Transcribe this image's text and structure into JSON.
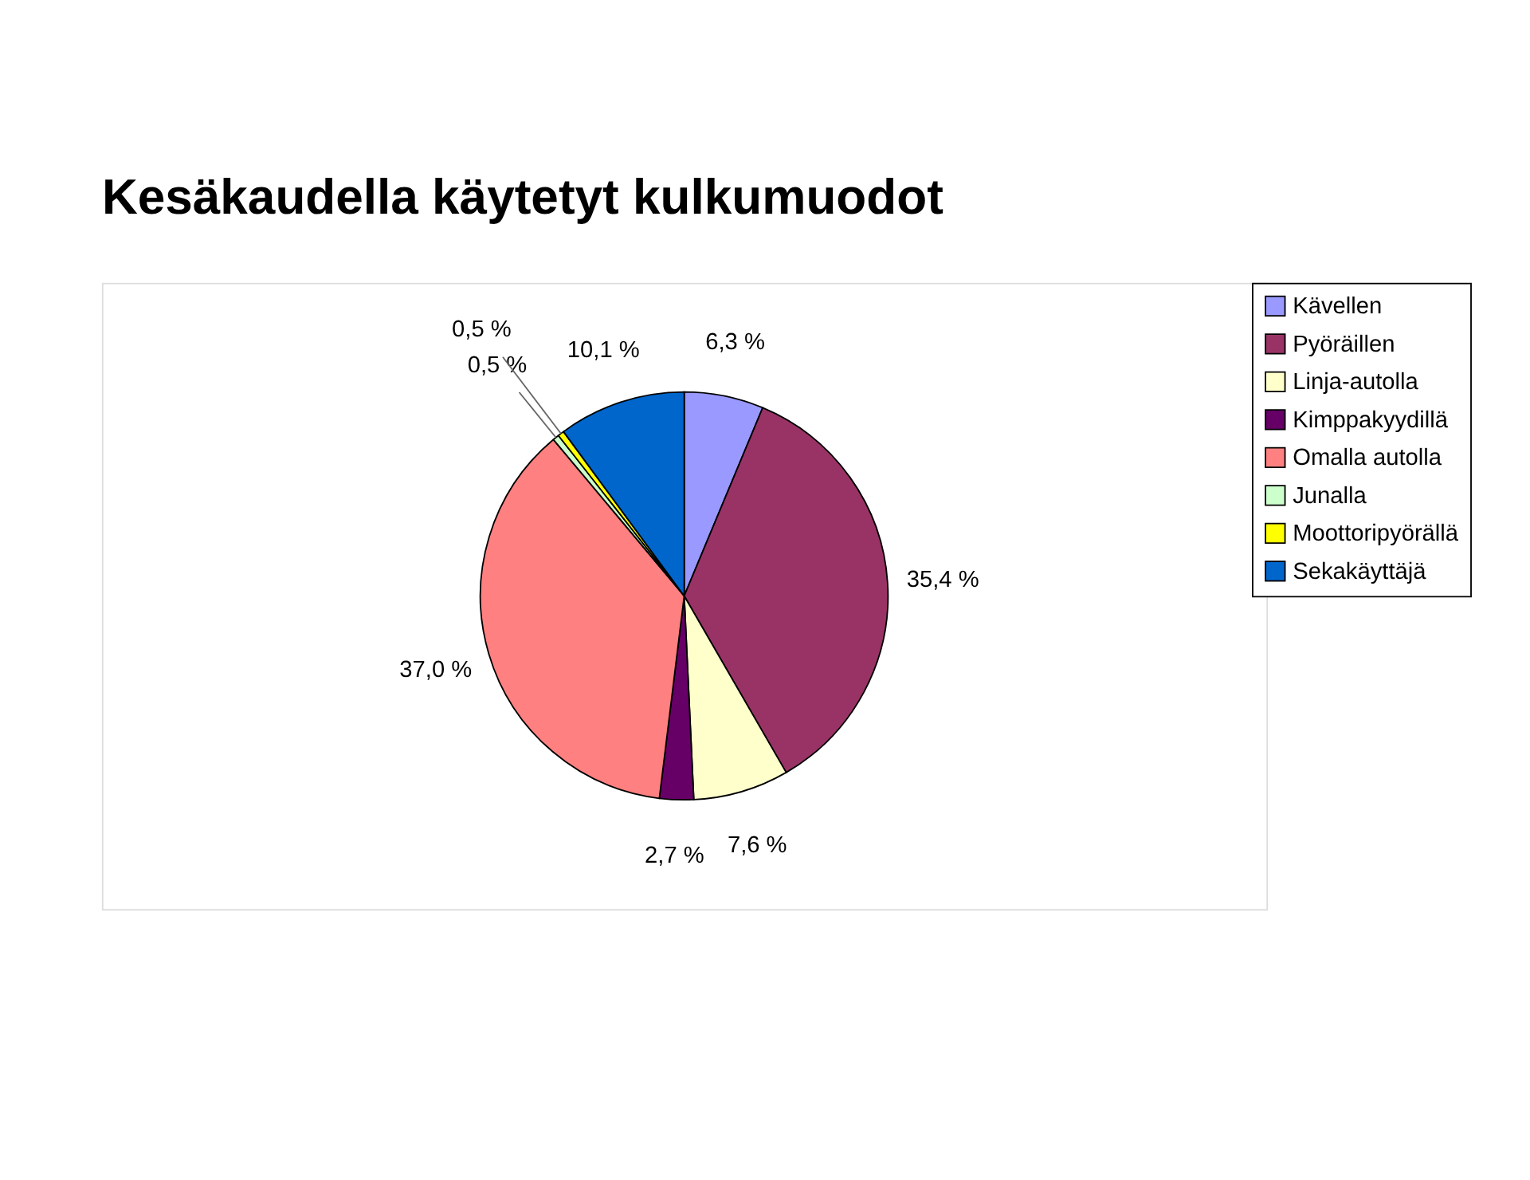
{
  "chart_data": {
    "type": "pie",
    "title": "Kesäkaudella käytetyt kulkumuodot",
    "categories": [
      "Kävellen",
      "Pyöräillen",
      "Linja-autolla",
      "Kimppakyydillä",
      "Omalla autolla",
      "Junalla",
      "Moottoripyörällä",
      "Sekakäyttäjä"
    ],
    "values": [
      6.3,
      35.4,
      7.6,
      2.7,
      37.0,
      0.5,
      0.5,
      10.1
    ],
    "value_labels": [
      "6,3 %",
      "35,4 %",
      "7,6 %",
      "2,7 %",
      "37,0 %",
      "0,5 %",
      "0,5 %",
      "10,1 %"
    ],
    "colors": [
      "#9999ff",
      "#993366",
      "#ffffcc",
      "#660066",
      "#ff8080",
      "#ccffcc",
      "#ffff00",
      "#0066cc"
    ],
    "legend": "right"
  }
}
